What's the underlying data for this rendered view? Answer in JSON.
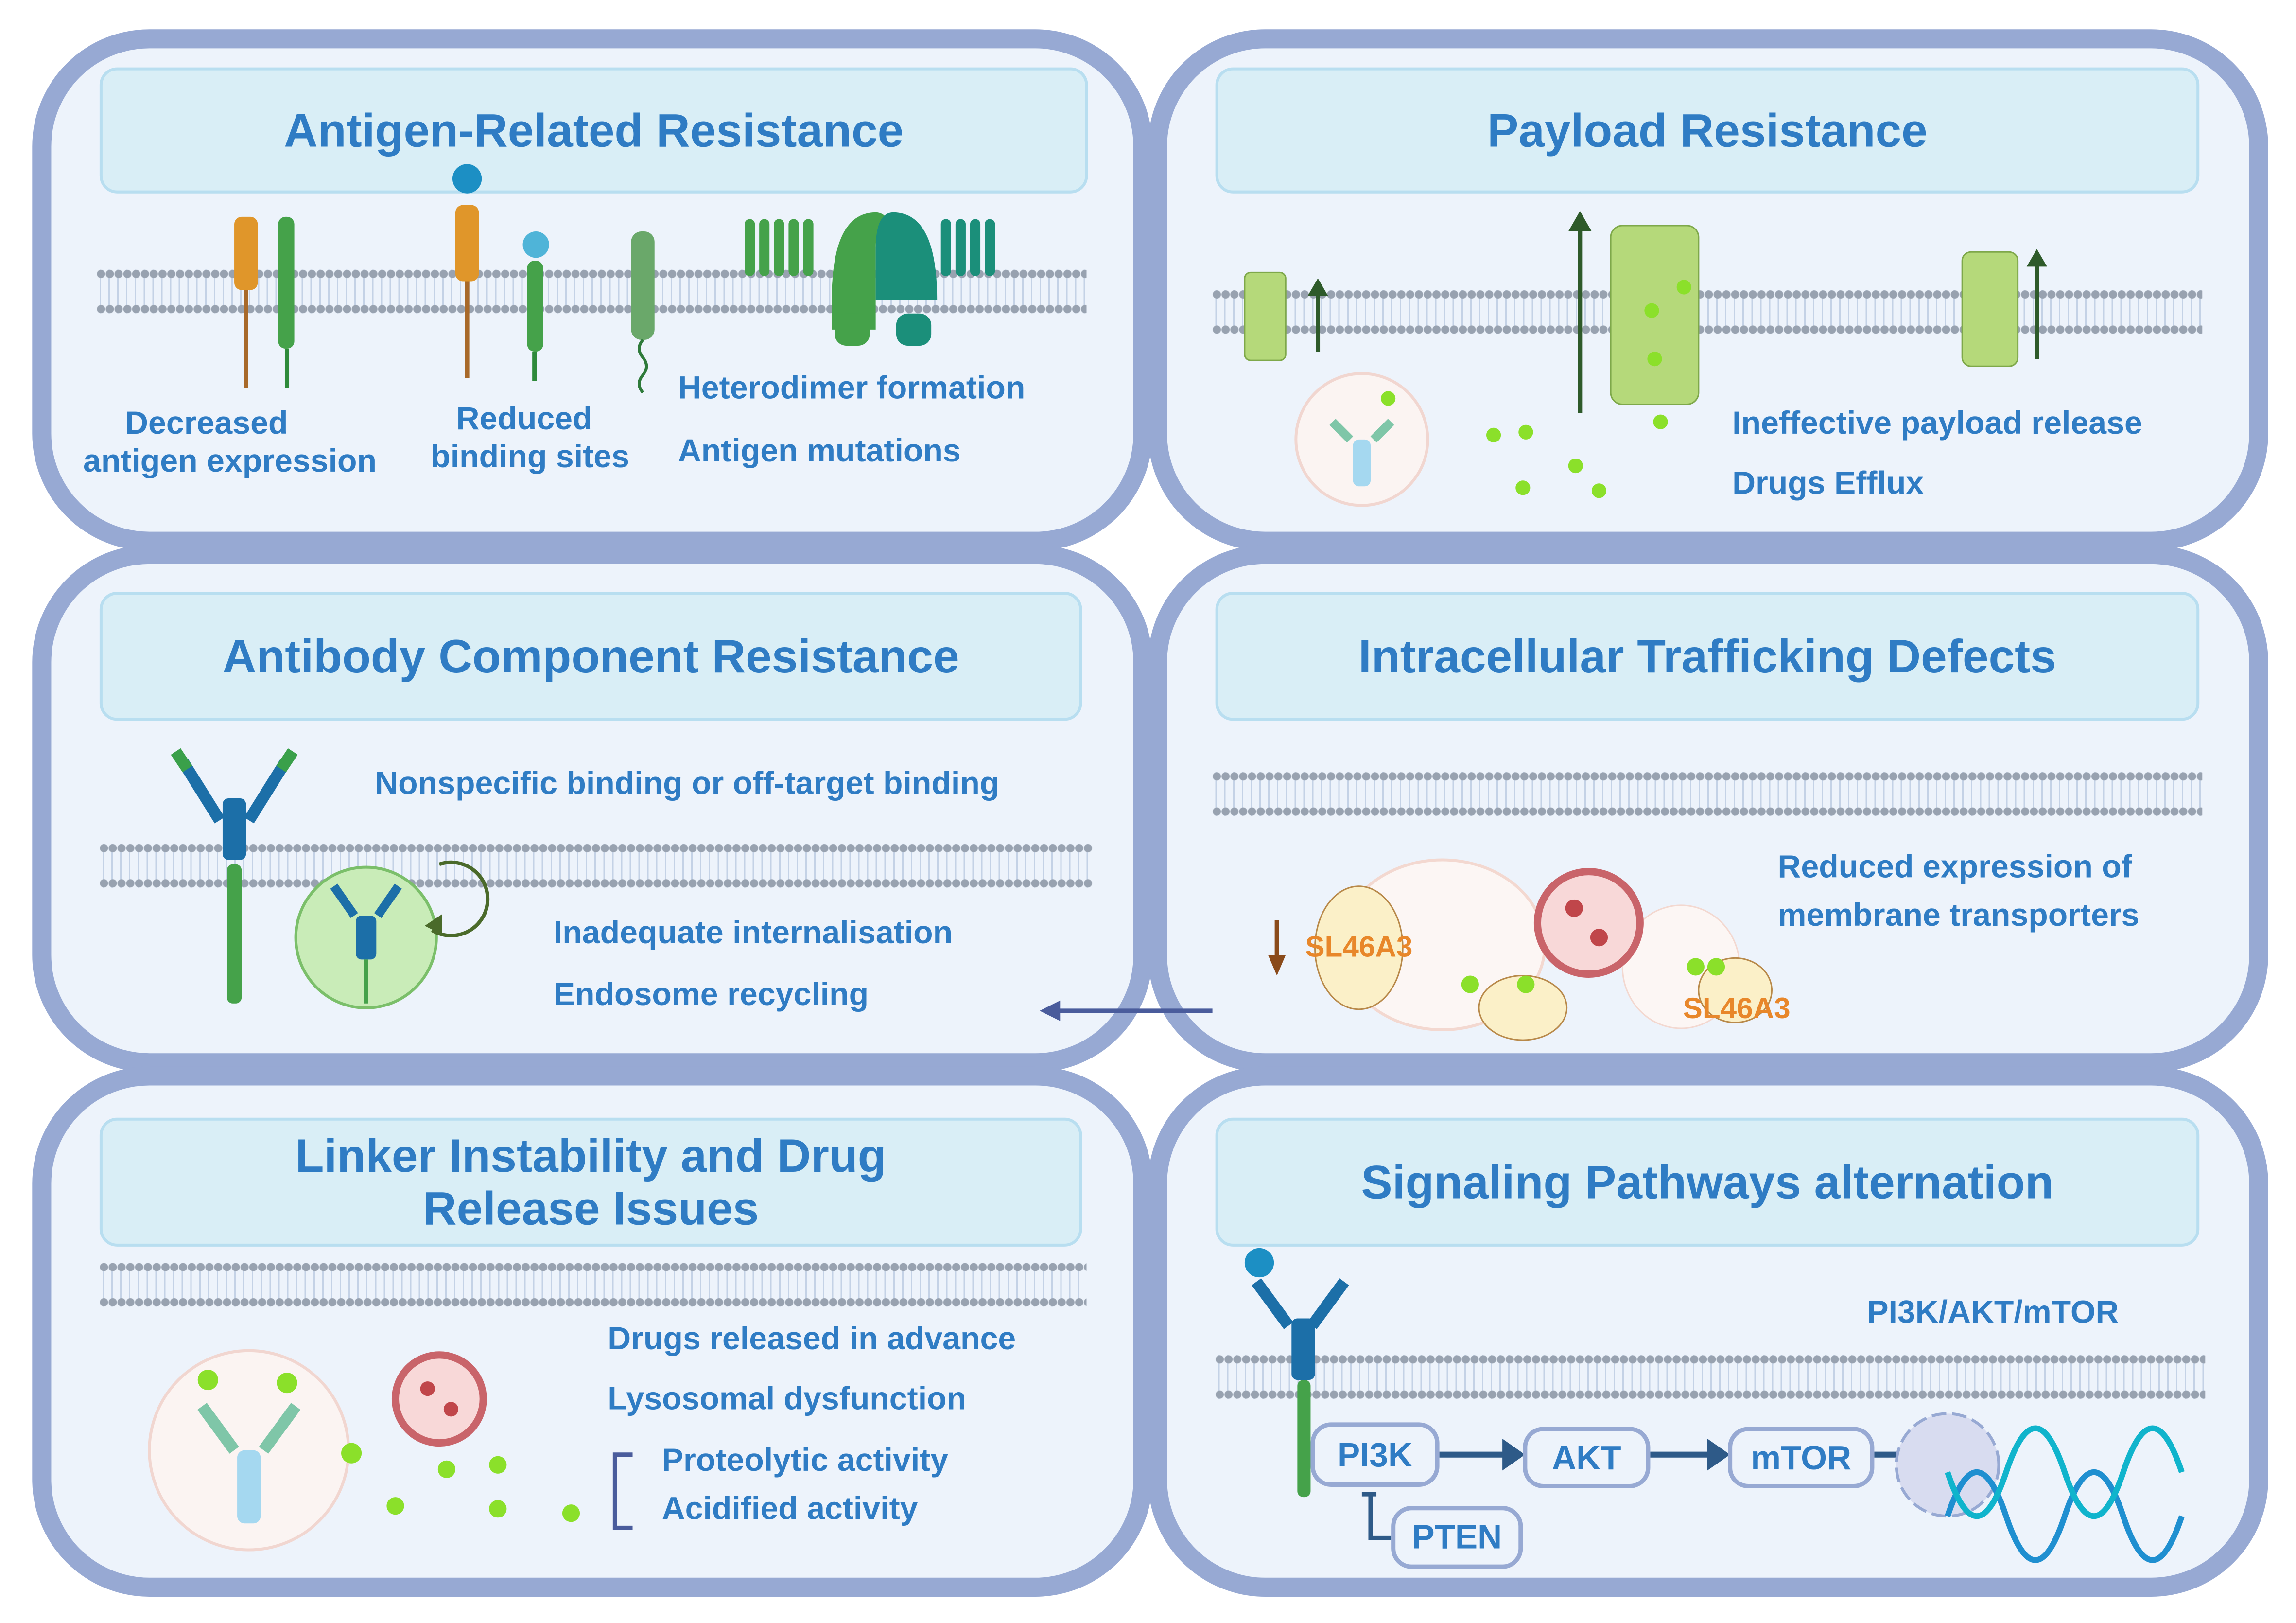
{
  "colors": {
    "panel_border": "#97a9d3",
    "panel_fill": "#edf3fb",
    "title_fill": "#d9eef6",
    "text": "#2f7cc4",
    "transporter_label": "#e8872a",
    "arrow": "#4a5c9c"
  },
  "panels": {
    "antigen": {
      "title": "Antigen-Related Resistance",
      "labels": {
        "decreased_1": "Decreased",
        "decreased_2": "antigen expression",
        "reduced_1": "Reduced",
        "reduced_2": "binding sites",
        "heterodimer": "Heterodimer formation",
        "mutations": "Antigen mutations"
      }
    },
    "payload": {
      "title": "Payload Resistance",
      "labels": {
        "release": "Ineffective payload release",
        "efflux": "Drugs Efflux"
      }
    },
    "antibody": {
      "title": "Antibody Component Resistance",
      "labels": {
        "nonspecific": "Nonspecific binding or off-target binding",
        "internalisation": "Inadequate internalisation",
        "recycling": "Endosome recycling"
      }
    },
    "trafficking": {
      "title": "Intracellular Trafficking Defects",
      "labels": {
        "reduced_1": "Reduced expression of",
        "reduced_2": "membrane transporters",
        "transporter_a": "SL46A3",
        "transporter_b": "SL46A3"
      }
    },
    "linker": {
      "title": "Linker Instability and Drug Release Issues",
      "labels": {
        "advance": "Drugs released in advance",
        "lysosomal": "Lysosomal dysfunction",
        "proteolytic": "Proteolytic activity",
        "acidified": "Acidified activity"
      }
    },
    "signaling": {
      "title": "Signaling Pathways alternation",
      "labels": {
        "pathway": "PI3K/AKT/mTOR",
        "pi3k": "PI3K",
        "akt": "AKT",
        "mtor": "mTOR",
        "pten": "PTEN"
      }
    }
  }
}
